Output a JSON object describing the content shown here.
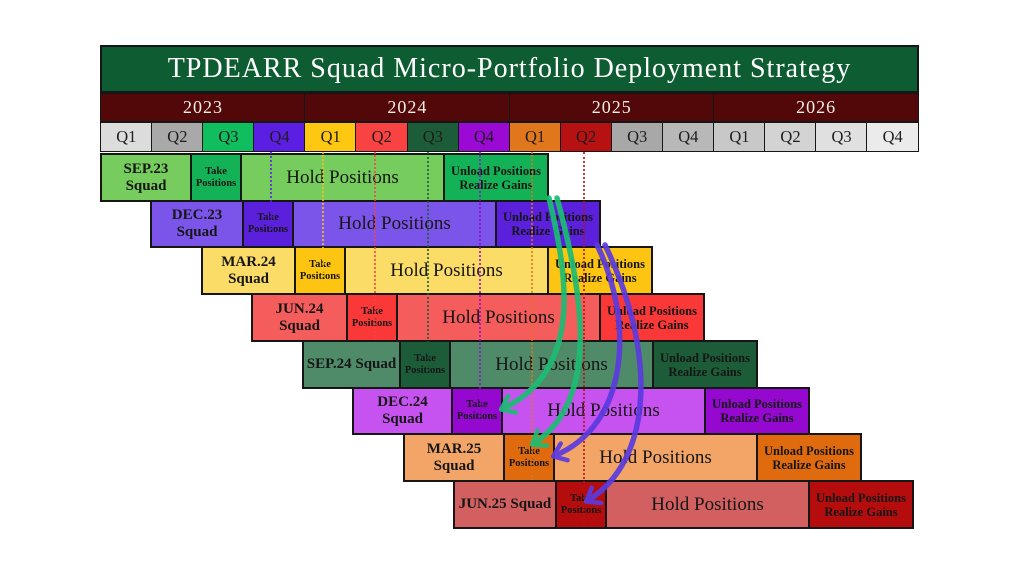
{
  "title": "TPDEARR Squad Micro-Portfolio Deployment Strategy",
  "palette": {
    "title_bg": "#0e5c32",
    "year_bg": "#520808",
    "border": "#161616",
    "arrow_green": "#1cbd74",
    "arrow_purple": "#5b3be0"
  },
  "years": [
    "2023",
    "2024",
    "2025",
    "2026"
  ],
  "quarters": [
    {
      "label": "Q1",
      "color": "#dcdcdc"
    },
    {
      "label": "Q2",
      "color": "#a9a9a9"
    },
    {
      "label": "Q3",
      "color": "#10bd5f"
    },
    {
      "label": "Q4",
      "color": "#5a1fe2"
    },
    {
      "label": "Q1",
      "color": "#fec712"
    },
    {
      "label": "Q2",
      "color": "#f94343"
    },
    {
      "label": "Q3",
      "color": "#1c5c38"
    },
    {
      "label": "Q4",
      "color": "#9a0ad4"
    },
    {
      "label": "Q1",
      "color": "#e0771c"
    },
    {
      "label": "Q2",
      "color": "#b81111"
    },
    {
      "label": "Q3",
      "color": "#a8a8a8"
    },
    {
      "label": "Q4",
      "color": "#b8b8b8"
    },
    {
      "label": "Q1",
      "color": "#c8c8c8"
    },
    {
      "label": "Q2",
      "color": "#d3d3d3"
    },
    {
      "label": "Q3",
      "color": "#e0e0e0"
    },
    {
      "label": "Q4",
      "color": "#ebebeb"
    }
  ],
  "phase_labels": {
    "take": "Take Positions",
    "hold": "Hold Positions",
    "unload": "Unload Positions Realize Gains"
  },
  "rows": [
    {
      "squad": "SEP.23 Squad",
      "take": "Take Positions",
      "hold": "Hold Positions",
      "unload": "Unload Positions Realize Gains",
      "light": "#76cc5c",
      "dark": "#14b257"
    },
    {
      "squad": "DEC.23 Squad",
      "take": "Take Positions",
      "hold": "Hold Positions",
      "unload": "Unload Positions Realize Gains",
      "light": "#7b55ea",
      "dark": "#5a20dc"
    },
    {
      "squad": "MAR.24 Squad",
      "take": "Take Positions",
      "hold": "Hold Positions",
      "unload": "Unload Positions Realize Gains",
      "light": "#fbdc66",
      "dark": "#fdc411"
    },
    {
      "squad": "JUN.24 Squad",
      "take": "Take Positions",
      "hold": "Hold Positions",
      "unload": "Unload Positions Realize Gains",
      "light": "#f55c5c",
      "dark": "#fa3838"
    },
    {
      "squad": "SEP.24 Squad",
      "take": "Take Positions",
      "hold": "Hold Positions",
      "unload": "Unload Positions Realize Gains",
      "light": "#4f8b68",
      "dark": "#1c5c38"
    },
    {
      "squad": "DEC.24 Squad",
      "take": "Take Positions",
      "hold": "Hold Positions",
      "unload": "Unload Positions Realize Gains",
      "light": "#c653f0",
      "dark": "#9408d0"
    },
    {
      "squad": "MAR.25 Squad",
      "take": "Take Positions",
      "hold": "Hold Positions",
      "unload": "Unload Positions Realize Gains",
      "light": "#f2a566",
      "dark": "#df6b0e"
    },
    {
      "squad": "JUN.25 Squad",
      "take": "Take Positions",
      "hold": "Hold Positions",
      "unload": "Unload Positions Realize Gains",
      "light": "#d26060",
      "dark": "#b50d0d"
    }
  ],
  "quarter_guides": [
    "#5a1fe2",
    "#fec712",
    "#f94343",
    "#1c5c38",
    "#9a0ad4",
    "#e0771c",
    "#b81111"
  ]
}
